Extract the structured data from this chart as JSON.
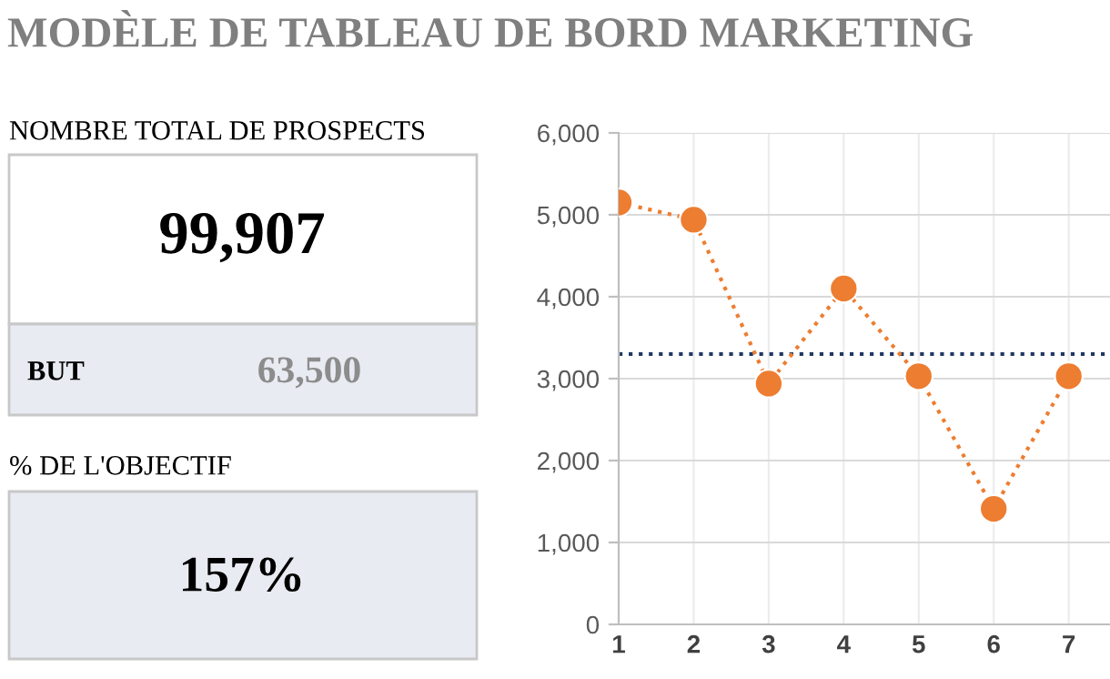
{
  "chart_data": [
    {
      "type": "other",
      "title": "MODÈLE DE TABLEAU DE BORD MARKETING",
      "annotations": [
        "NOMBRE TOTAL DE PROSPECTS",
        "99,907",
        "BUT",
        "63,500",
        "% DE L'OBJECTIF",
        "157%"
      ]
    },
    {
      "type": "line",
      "x": [
        1,
        2,
        3,
        4,
        5,
        6,
        7
      ],
      "series": [
        {
          "color": "#ed7d31",
          "values": [
            5150,
            4940,
            2940,
            4100,
            3030,
            1410,
            3030
          ]
        }
      ],
      "xlim": [
        1,
        7.55
      ],
      "xticks": [
        1,
        2,
        3,
        4,
        5,
        6,
        7
      ],
      "ylim": [
        0,
        6000
      ],
      "yticks": [
        {
          "value": 0,
          "label": "0"
        },
        {
          "value": 1000,
          "label": "1,000"
        },
        {
          "value": 2000,
          "label": "2,000"
        },
        {
          "value": 3000,
          "label": "3,000"
        },
        {
          "value": 4000,
          "label": "4,000"
        },
        {
          "value": 5000,
          "label": "5,000"
        },
        {
          "value": 6000,
          "label": "6,000"
        }
      ],
      "ref_lines": [
        {
          "axis": "y",
          "value": 3300,
          "color": "#1f3864",
          "line_style": "dotted"
        }
      ],
      "grid": true,
      "marker": "circle",
      "line_style": "dotted"
    }
  ]
}
